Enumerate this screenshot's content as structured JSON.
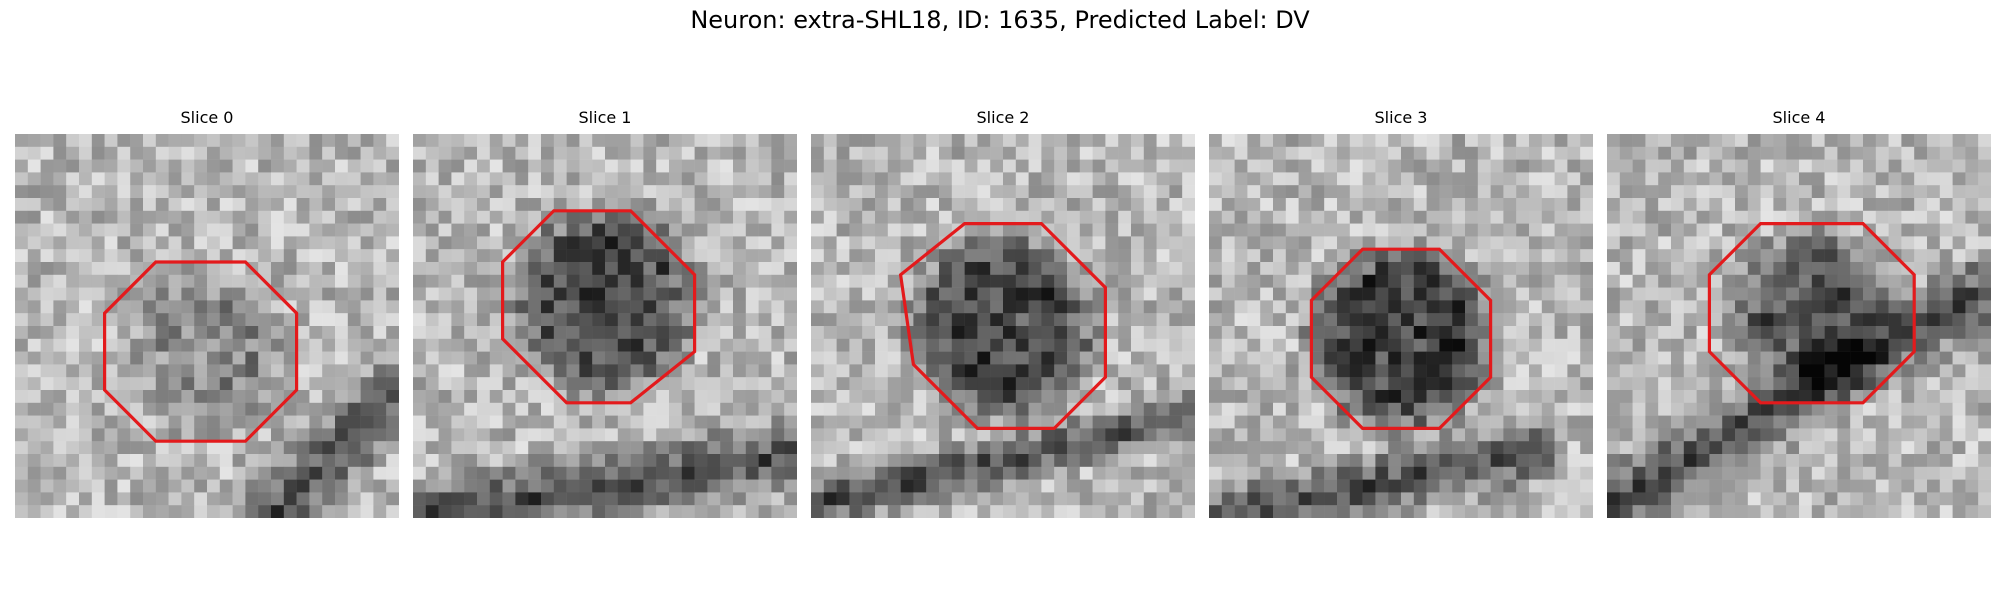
{
  "figure": {
    "title": "Neuron: extra-SHL18, ID: 1635, Predicted Label: DV"
  },
  "panels": [
    {
      "title": "Slice 0",
      "seed": 11,
      "blob_strength": 0.35,
      "outline_color": "#e31a1c"
    },
    {
      "title": "Slice 1",
      "seed": 23,
      "blob_strength": 0.75,
      "outline_color": "#e31a1c"
    },
    {
      "title": "Slice 2",
      "seed": 37,
      "blob_strength": 0.8,
      "outline_color": "#e31a1c"
    },
    {
      "title": "Slice 3",
      "seed": 41,
      "blob_strength": 0.85,
      "outline_color": "#e31a1c"
    },
    {
      "title": "Slice 4",
      "seed": 53,
      "blob_strength": 0.7,
      "outline_color": "#e31a1c"
    }
  ],
  "colors": {
    "outline": "#e31a1c",
    "background": "#ffffff"
  }
}
